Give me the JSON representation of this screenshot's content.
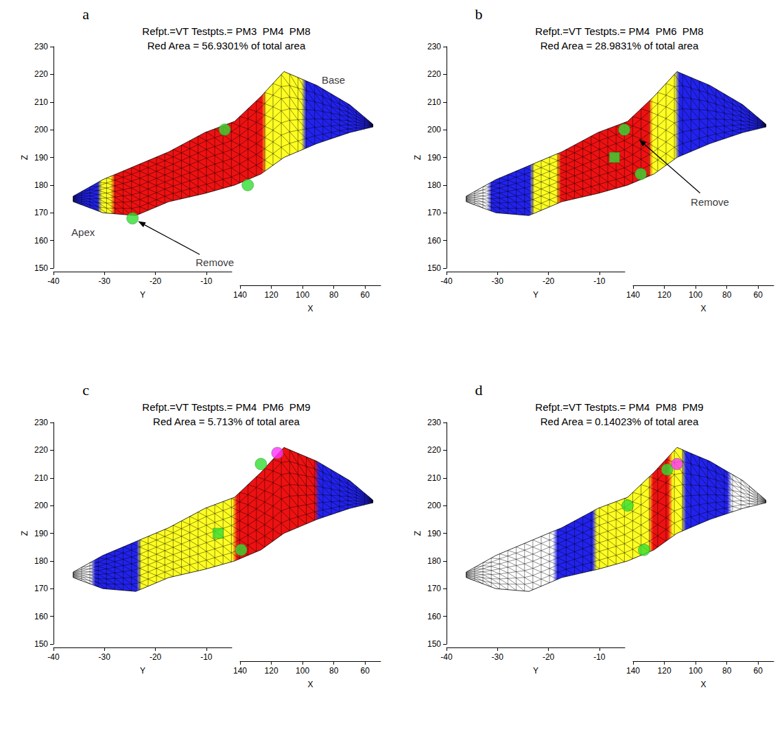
{
  "chart_data": [
    {
      "type": "mesh3d",
      "panel": "a",
      "title": [
        "Refpt.=VT Testpts.= PM3  PM4  PM8",
        "Red Area = 56.9301% of total area"
      ],
      "zlabel": "Z",
      "ylabel": "Y",
      "xlabel": "X",
      "zlim": [
        150,
        230
      ],
      "zticks": [
        150,
        160,
        170,
        180,
        190,
        200,
        210,
        220,
        230
      ],
      "ylim": [
        -40,
        -5
      ],
      "yticks": [
        -40,
        -30,
        -20,
        -10
      ],
      "xlim": [
        50,
        140
      ],
      "xticks": [
        60,
        80,
        100,
        120,
        140
      ],
      "ulim": [
        0,
        100
      ],
      "outline": {
        "u": [
          6,
          15,
          25,
          35,
          46,
          55,
          63,
          70,
          80,
          90,
          97
        ],
        "top": [
          176,
          182,
          187,
          192,
          199,
          203,
          212,
          221,
          216,
          209,
          202
        ],
        "bottom": [
          174,
          170,
          169,
          174,
          177,
          180,
          184,
          190,
          195,
          199,
          201
        ]
      },
      "bands": [
        {
          "from": 6,
          "to": 14,
          "color": "#2222ee"
        },
        {
          "from": 14,
          "to": 18,
          "color": "#ffff22"
        },
        {
          "from": 18,
          "to": 64,
          "color": "#ee1111"
        },
        {
          "from": 64,
          "to": 76,
          "color": "#ffff22"
        },
        {
          "from": 76,
          "to": 97,
          "color": "#2222ee"
        }
      ],
      "markers": [
        {
          "u": 52,
          "z": 200,
          "marker": "circle",
          "color": "#33dd33"
        },
        {
          "u": 59,
          "z": 180,
          "marker": "circle",
          "color": "#33dd33"
        },
        {
          "u": 24,
          "z": 168,
          "marker": "circle",
          "color": "#33dd33"
        }
      ],
      "annotations": [
        {
          "text": "Apex",
          "at": [
            9,
            163
          ]
        },
        {
          "text": "Base",
          "at": [
            85,
            218
          ]
        },
        {
          "text": "Remove",
          "at": [
            49,
            152
          ],
          "arrow_to": [
            24,
            168
          ]
        }
      ]
    },
    {
      "type": "mesh3d",
      "panel": "b",
      "title": [
        "Refpt.=VT Testpts.= PM4  PM6  PM8",
        "Red Area = 28.9831% of total area"
      ],
      "zlabel": "Z",
      "ylabel": "Y",
      "xlabel": "X",
      "zlim": [
        150,
        230
      ],
      "zticks": [
        150,
        160,
        170,
        180,
        190,
        200,
        210,
        220,
        230
      ],
      "ylim": [
        -40,
        -5
      ],
      "yticks": [
        -40,
        -30,
        -20,
        -10
      ],
      "xlim": [
        50,
        140
      ],
      "xticks": [
        60,
        80,
        100,
        120,
        140
      ],
      "ulim": [
        0,
        100
      ],
      "outline": {
        "u": [
          6,
          15,
          25,
          35,
          46,
          55,
          63,
          70,
          80,
          90,
          97
        ],
        "top": [
          176,
          182,
          187,
          192,
          199,
          203,
          212,
          221,
          216,
          209,
          202
        ],
        "bottom": [
          174,
          170,
          169,
          174,
          177,
          180,
          184,
          190,
          195,
          199,
          201
        ]
      },
      "bands": [
        {
          "from": 6,
          "to": 13,
          "color": "#ffffff"
        },
        {
          "from": 13,
          "to": 26,
          "color": "#2222ee"
        },
        {
          "from": 26,
          "to": 34,
          "color": "#ffff22"
        },
        {
          "from": 34,
          "to": 62,
          "color": "#ee1111"
        },
        {
          "from": 62,
          "to": 70,
          "color": "#ffff22"
        },
        {
          "from": 70,
          "to": 97,
          "color": "#2222ee"
        }
      ],
      "markers": [
        {
          "u": 54,
          "z": 200,
          "marker": "circle",
          "color": "#33dd33"
        },
        {
          "u": 51,
          "z": 190,
          "marker": "rect",
          "color": "#33dd33"
        },
        {
          "u": 59,
          "z": 184,
          "marker": "circle",
          "color": "#33dd33"
        }
      ],
      "annotations": [
        {
          "text": "Remove",
          "at": [
            80,
            174
          ],
          "arrow_to": [
            57,
            198
          ]
        }
      ]
    },
    {
      "type": "mesh3d",
      "panel": "c",
      "title": [
        "Refpt.=VT Testpts.= PM4  PM6  PM9",
        "Red Area = 5.713% of total area"
      ],
      "zlabel": "Z",
      "ylabel": "Y",
      "xlabel": "X",
      "zlim": [
        150,
        230
      ],
      "zticks": [
        150,
        160,
        170,
        180,
        190,
        200,
        210,
        220,
        230
      ],
      "ylim": [
        -40,
        -5
      ],
      "yticks": [
        -40,
        -30,
        -20,
        -10
      ],
      "xlim": [
        50,
        140
      ],
      "xticks": [
        60,
        80,
        100,
        120,
        140
      ],
      "ulim": [
        0,
        100
      ],
      "outline": {
        "u": [
          6,
          15,
          25,
          35,
          46,
          55,
          63,
          70,
          80,
          90,
          97
        ],
        "top": [
          176,
          182,
          187,
          192,
          199,
          203,
          212,
          221,
          216,
          209,
          202
        ],
        "bottom": [
          174,
          170,
          169,
          174,
          177,
          180,
          184,
          190,
          195,
          199,
          201
        ]
      },
      "bands": [
        {
          "from": 6,
          "to": 12,
          "color": "#ffffff"
        },
        {
          "from": 12,
          "to": 26,
          "color": "#2222ee"
        },
        {
          "from": 26,
          "to": 55,
          "color": "#ffff22"
        },
        {
          "from": 55,
          "to": 80,
          "color": "#ee1111"
        },
        {
          "from": 80,
          "to": 97,
          "color": "#2222ee"
        }
      ],
      "markers": [
        {
          "u": 63,
          "z": 215,
          "marker": "circle",
          "color": "#33dd33"
        },
        {
          "u": 68,
          "z": 219,
          "marker": "circle",
          "color": "#ff33ff"
        },
        {
          "u": 50,
          "z": 190,
          "marker": "rect",
          "color": "#33dd33"
        },
        {
          "u": 57,
          "z": 184,
          "marker": "circle",
          "color": "#33dd33"
        }
      ],
      "annotations": []
    },
    {
      "type": "mesh3d",
      "panel": "d",
      "title": [
        "Refpt.=VT Testpts.= PM4  PM8  PM9",
        "Red Area = 0.14023% of total area"
      ],
      "zlabel": "Z",
      "ylabel": "Y",
      "xlabel": "X",
      "zlim": [
        150,
        230
      ],
      "zticks": [
        150,
        160,
        170,
        180,
        190,
        200,
        210,
        220,
        230
      ],
      "ylim": [
        -40,
        -5
      ],
      "yticks": [
        -40,
        -30,
        -20,
        -10
      ],
      "xlim": [
        50,
        140
      ],
      "xticks": [
        60,
        80,
        100,
        120,
        140
      ],
      "ulim": [
        0,
        100
      ],
      "outline": {
        "u": [
          6,
          15,
          25,
          35,
          46,
          55,
          63,
          70,
          80,
          90,
          97
        ],
        "top": [
          176,
          182,
          187,
          192,
          199,
          203,
          212,
          221,
          216,
          209,
          202
        ],
        "bottom": [
          174,
          170,
          169,
          174,
          177,
          180,
          184,
          190,
          195,
          199,
          201
        ]
      },
      "bands": [
        {
          "from": 6,
          "to": 33,
          "color": "#ffffff"
        },
        {
          "from": 33,
          "to": 45,
          "color": "#2222ee"
        },
        {
          "from": 45,
          "to": 62,
          "color": "#ffff22"
        },
        {
          "from": 62,
          "to": 68,
          "color": "#ee1111"
        },
        {
          "from": 68,
          "to": 72,
          "color": "#ffff22"
        },
        {
          "from": 72,
          "to": 86,
          "color": "#2222ee"
        },
        {
          "from": 86,
          "to": 97,
          "color": "#ffffff"
        }
      ],
      "markers": [
        {
          "u": 67,
          "z": 213,
          "marker": "circle",
          "color": "#33dd33"
        },
        {
          "u": 70,
          "z": 215,
          "marker": "circle",
          "color": "#ff33ff"
        },
        {
          "u": 55,
          "z": 200,
          "marker": "circle",
          "color": "#33dd33"
        },
        {
          "u": 60,
          "z": 184,
          "marker": "circle",
          "color": "#33dd33"
        }
      ],
      "annotations": []
    }
  ]
}
